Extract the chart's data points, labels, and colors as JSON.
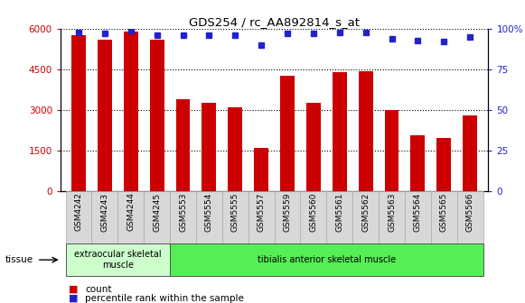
{
  "title": "GDS254 / rc_AA892814_s_at",
  "categories": [
    "GSM4242",
    "GSM4243",
    "GSM4244",
    "GSM4245",
    "GSM5553",
    "GSM5554",
    "GSM5555",
    "GSM5557",
    "GSM5559",
    "GSM5560",
    "GSM5561",
    "GSM5562",
    "GSM5563",
    "GSM5564",
    "GSM5565",
    "GSM5566"
  ],
  "counts": [
    5750,
    5600,
    5900,
    5600,
    3400,
    3250,
    3100,
    1580,
    4250,
    3250,
    4400,
    4430,
    2980,
    2050,
    1950,
    2780
  ],
  "percentiles": [
    98,
    97,
    99,
    96,
    96,
    96,
    96,
    90,
    97,
    97,
    98,
    98,
    94,
    93,
    92,
    95
  ],
  "bar_color": "#cc0000",
  "dot_color": "#2222cc",
  "ylim_left": [
    0,
    6000
  ],
  "ylim_right": [
    0,
    100
  ],
  "yticks_left": [
    0,
    1500,
    3000,
    4500,
    6000
  ],
  "ytick_labels_left": [
    "0",
    "1500",
    "3000",
    "4500",
    "6000"
  ],
  "yticks_right": [
    0,
    25,
    50,
    75,
    100
  ],
  "ytick_labels_right": [
    "0",
    "25",
    "50",
    "75",
    "100%"
  ],
  "tissue_groups": [
    {
      "label": "extraocular skeletal\nmuscle",
      "start": 0,
      "end": 4,
      "color": "#ccffcc"
    },
    {
      "label": "tibialis anterior skeletal muscle",
      "start": 4,
      "end": 16,
      "color": "#55ee55"
    }
  ],
  "tissue_label": "tissue",
  "legend_count_label": "count",
  "legend_percentile_label": "percentile rank within the sample",
  "background_color": "#ffffff",
  "tick_bg_color": "#d8d8d8"
}
